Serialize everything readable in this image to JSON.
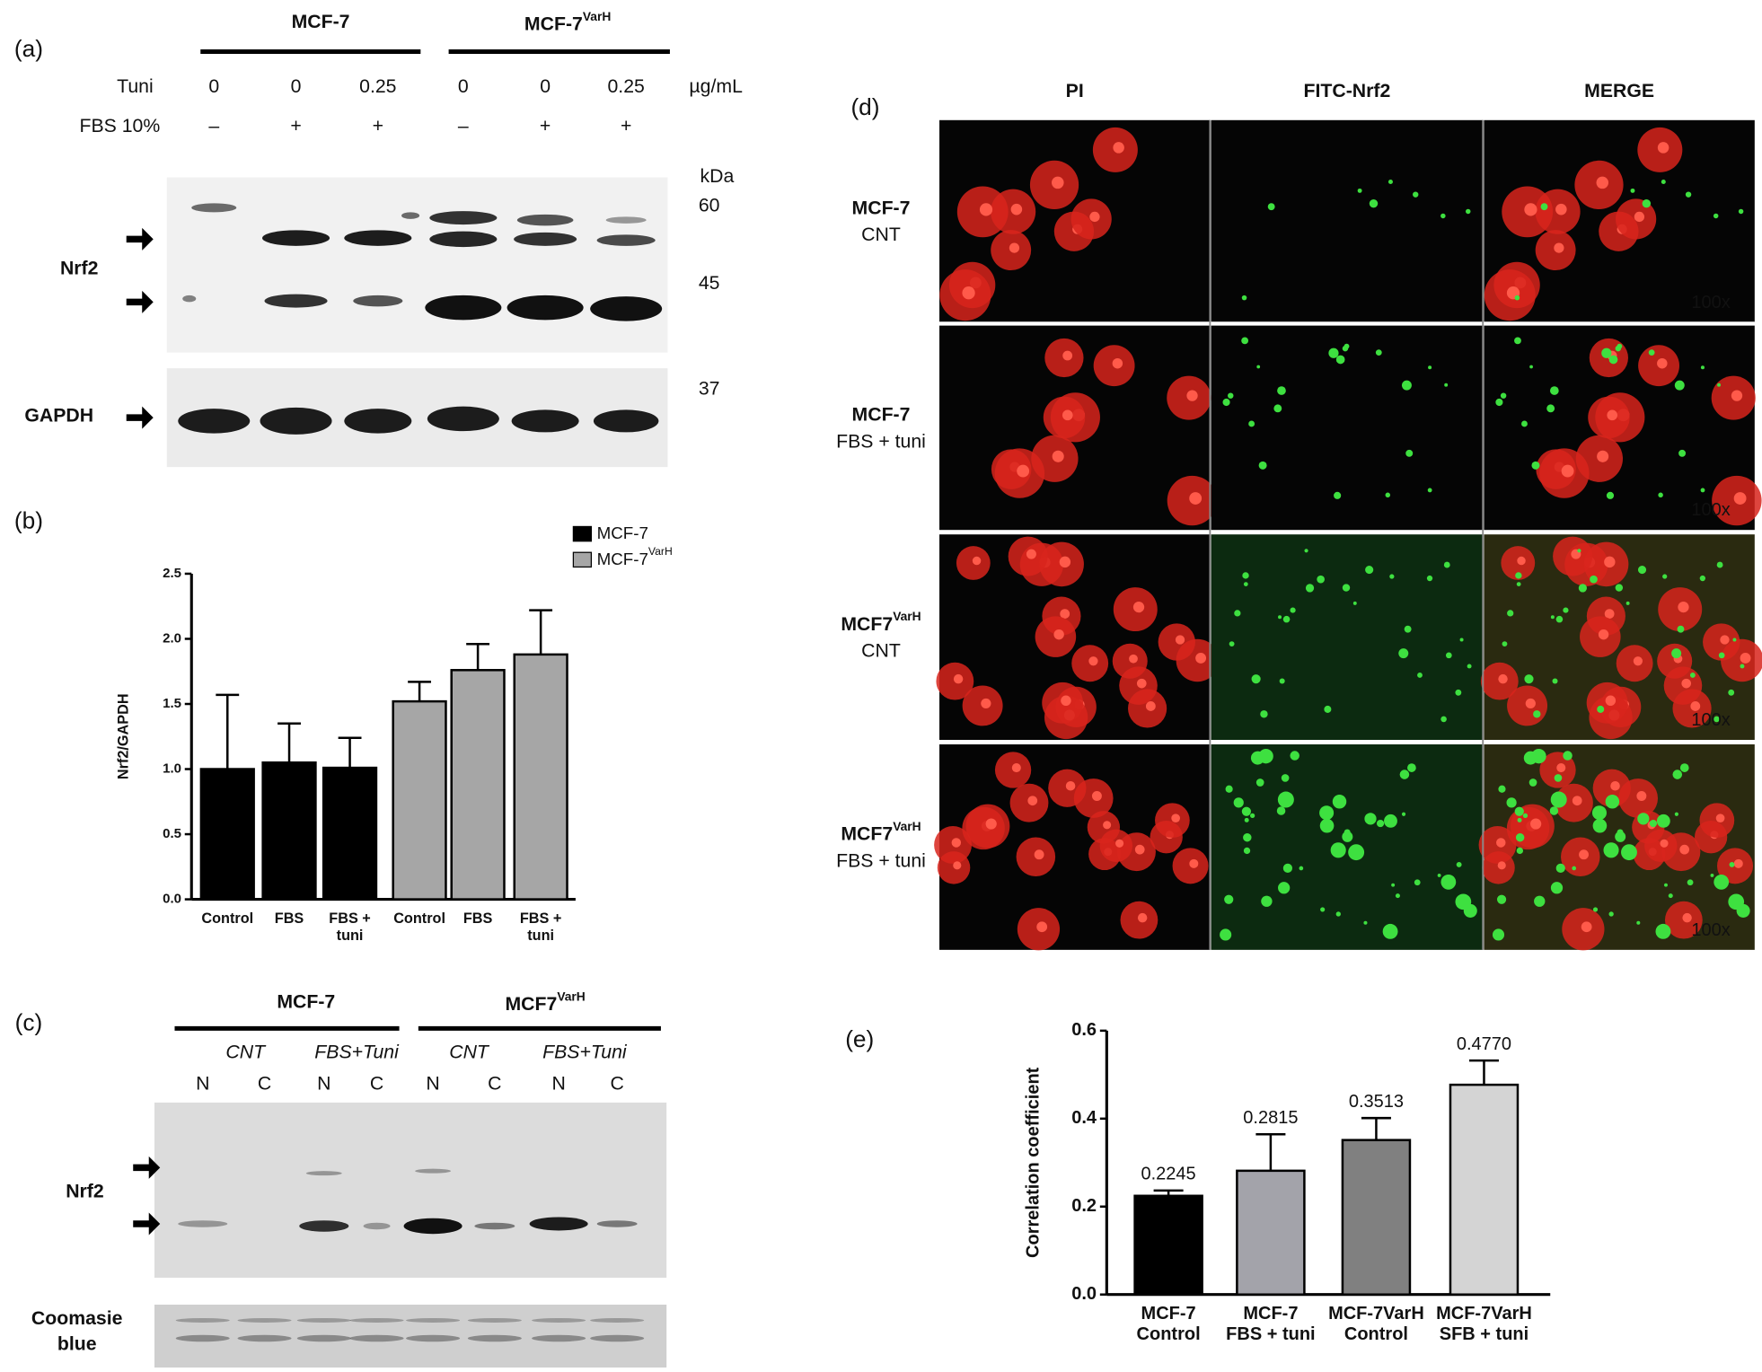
{
  "panel_a": {
    "label": "(a)",
    "groups": [
      {
        "name": "MCF-7"
      },
      {
        "name": "MCF-7",
        "sup": "VarH"
      }
    ],
    "tuni_label": "Tuni",
    "tuni": [
      "0",
      "0",
      "0.25",
      "0",
      "0",
      "0.25"
    ],
    "unit": "µg/mL",
    "fbs_label": "FBS 10%",
    "fbs": [
      "–",
      "+",
      "+",
      "–",
      "+",
      "+"
    ],
    "kda_label": "kDa",
    "markers": [
      "60",
      "45",
      "37"
    ],
    "blots": [
      "Nrf2",
      "GAPDH"
    ]
  },
  "panel_b": {
    "label": "(b)"
  },
  "panel_c": {
    "label": "(c)",
    "groups": [
      {
        "name": "MCF-7"
      },
      {
        "name": "MCF7",
        "sup": "VarH"
      }
    ],
    "conditions": [
      "CNT",
      "FBS+Tuni",
      "CNT",
      "FBS+Tuni"
    ],
    "fractions": [
      "N",
      "C",
      "N",
      "C",
      "N",
      "C",
      "N",
      "C"
    ],
    "blot": "Nrf2",
    "stain": [
      "Coomasie",
      "blue"
    ]
  },
  "panel_d": {
    "label": "(d)",
    "columns": [
      "PI",
      "FITC-Nrf2",
      "MERGE"
    ],
    "rows": [
      {
        "name": "MCF-7",
        "sub": "CNT"
      },
      {
        "name": "MCF-7",
        "sub": "FBS + tuni"
      },
      {
        "name": "MCF7",
        "sup": "VarH",
        "sub": "CNT"
      },
      {
        "name": "MCF7",
        "sup": "VarH",
        "sub": "FBS + tuni"
      }
    ],
    "magnification": "100x"
  },
  "panel_e": {
    "label": "(e)"
  },
  "chart_data": [
    {
      "type": "bar",
      "y_label": "Nrf2/GAPDH",
      "categories": [
        "Control",
        "FBS",
        "FBS + tuni",
        "Control",
        "FBS",
        "FBS + tuni"
      ],
      "series": [
        {
          "name": "MCF-7",
          "color": "#000000",
          "values": [
            1.0,
            1.05,
            1.01,
            null,
            null,
            null
          ],
          "errors": [
            0.57,
            0.3,
            0.23,
            null,
            null,
            null
          ]
        },
        {
          "name": "MCF-7",
          "sup": "VarH",
          "color": "#a6a6a6",
          "values": [
            null,
            null,
            null,
            1.52,
            1.76,
            1.88
          ],
          "errors": [
            null,
            null,
            null,
            0.15,
            0.2,
            0.34
          ]
        }
      ],
      "ylim": [
        0,
        2.5
      ],
      "yticks": [
        {
          "value": 0,
          "label": "0.0"
        },
        {
          "value": 0.5,
          "label": "0.5"
        },
        {
          "value": 1,
          "label": "1.0"
        },
        {
          "value": 1.5,
          "label": "1.5"
        },
        {
          "value": 2,
          "label": "2.0"
        },
        {
          "value": 2.5,
          "label": "2.5"
        }
      ],
      "legend": "top-right"
    },
    {
      "type": "bar",
      "y_label": "Correlation coefficient",
      "categories": [
        "MCF-7 Control",
        "MCF-7 FBS + tuni",
        "MCF-7VarH Control",
        "MCF-7VarH SFB + tuni"
      ],
      "values": [
        0.2245,
        0.2815,
        0.3513,
        0.477
      ],
      "value_labels": [
        "0.2245",
        "0.2815",
        "0.3513",
        "0.4770"
      ],
      "errors": [
        0.012,
        0.083,
        0.05,
        0.055
      ],
      "colors": [
        "#000000",
        "#a3a3aa",
        "#808080",
        "#d4d4d4"
      ],
      "ylim": [
        0,
        0.6
      ],
      "yticks": [
        {
          "value": 0,
          "label": "0.0"
        },
        {
          "value": 0.2,
          "label": "0.2"
        },
        {
          "value": 0.4,
          "label": "0.4"
        },
        {
          "value": 0.6,
          "label": "0.6"
        }
      ]
    }
  ]
}
